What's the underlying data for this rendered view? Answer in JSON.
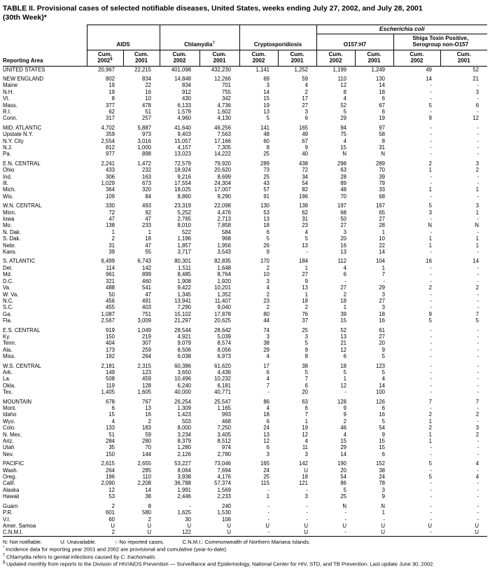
{
  "title": {
    "line1": "TABLE II. Provisional cases of selected notifiable diseases, United States, weeks ending July 27, 2002, and July 28, 2001",
    "line2": "(30th Week)*"
  },
  "header": {
    "reporting_area_label": "Reporting Area",
    "ecoli_group_label": "Escherichia coli",
    "groups": [
      {
        "lines": [
          "AIDS"
        ],
        "sup": ""
      },
      {
        "lines": [
          "Chlamydia"
        ],
        "sup": "†"
      },
      {
        "lines": [
          "Cryptosporidiosis"
        ],
        "sup": ""
      },
      {
        "lines": [
          "O157:H7"
        ],
        "sup": ""
      },
      {
        "lines": [
          "Shiga Toxin Positive,",
          "Serogroup non-O157"
        ],
        "sup": ""
      }
    ],
    "cum_columns": [
      {
        "l1": "Cum.",
        "l2": "2002",
        "sup": "§"
      },
      {
        "l1": "Cum.",
        "l2": "2001",
        "sup": ""
      },
      {
        "l1": "Cum.",
        "l2": "2002",
        "sup": ""
      },
      {
        "l1": "Cum.",
        "l2": "2001",
        "sup": ""
      },
      {
        "l1": "Cum.",
        "l2": "2002",
        "sup": ""
      },
      {
        "l1": "Cum.",
        "l2": "2001",
        "sup": ""
      },
      {
        "l1": "Cum.",
        "l2": "2002",
        "sup": ""
      },
      {
        "l1": "Cum.",
        "l2": "2001",
        "sup": ""
      },
      {
        "l1": "Cum.",
        "l2": "2002",
        "sup": ""
      },
      {
        "l1": "Cum.",
        "l2": "2001",
        "sup": ""
      }
    ]
  },
  "rows": [
    {
      "area": "UNITED STATES",
      "values": [
        "20,967",
        "22,215",
        "401,098",
        "432,230",
        "1,141",
        "1,252",
        "1,199",
        "1,249",
        "49",
        "52"
      ],
      "gap": false
    },
    {
      "area": "NEW ENGLAND",
      "values": [
        "802",
        "834",
        "14,848",
        "12,266",
        "69",
        "59",
        "110",
        "130",
        "14",
        "21"
      ],
      "gap": true
    },
    {
      "area": "Maine",
      "values": [
        "19",
        "22",
        "834",
        "701",
        "3",
        "4",
        "12",
        "14",
        "-",
        "-"
      ],
      "gap": false
    },
    {
      "area": "N.H.",
      "values": [
        "19",
        "16",
        "912",
        "755",
        "14",
        "2",
        "8",
        "18",
        "-",
        "3"
      ],
      "gap": false
    },
    {
      "area": "Vt.",
      "values": [
        "8",
        "10",
        "430",
        "342",
        "15",
        "17",
        "4",
        "6",
        "-",
        "-"
      ],
      "gap": false
    },
    {
      "area": "Mass.",
      "values": [
        "377",
        "478",
        "6,133",
        "4,736",
        "19",
        "27",
        "52",
        "67",
        "5",
        "6"
      ],
      "gap": false
    },
    {
      "area": "R.I.",
      "values": [
        "62",
        "51",
        "1,579",
        "1,602",
        "13",
        "3",
        "5",
        "6",
        "-",
        "-"
      ],
      "gap": false
    },
    {
      "area": "Conn.",
      "values": [
        "317",
        "257",
        "4,960",
        "4,130",
        "5",
        "6",
        "29",
        "19",
        "9",
        "12"
      ],
      "gap": false
    },
    {
      "area": "MID. ATLANTIC",
      "values": [
        "4,702",
        "5,887",
        "41,640",
        "46,256",
        "141",
        "165",
        "94",
        "97",
        "-",
        "-"
      ],
      "gap": true
    },
    {
      "area": "Upstate N.Y.",
      "values": [
        "359",
        "973",
        "9,403",
        "7,563",
        "48",
        "49",
        "75",
        "58",
        "-",
        "-"
      ],
      "gap": false
    },
    {
      "area": "N.Y. City",
      "values": [
        "2,554",
        "3,016",
        "15,057",
        "17,166",
        "60",
        "67",
        "4",
        "8",
        "-",
        "-"
      ],
      "gap": false
    },
    {
      "area": "N.J.",
      "values": [
        "812",
        "1,000",
        "4,157",
        "7,305",
        "8",
        "9",
        "15",
        "31",
        "-",
        "-"
      ],
      "gap": false
    },
    {
      "area": "Pa.",
      "values": [
        "977",
        "898",
        "13,023",
        "14,222",
        "25",
        "40",
        "N",
        "N",
        "-",
        "-"
      ],
      "gap": false
    },
    {
      "area": "E.N. CENTRAL",
      "values": [
        "2,241",
        "1,472",
        "72,579",
        "79,920",
        "289",
        "438",
        "298",
        "289",
        "2",
        "3"
      ],
      "gap": true
    },
    {
      "area": "Ohio",
      "values": [
        "433",
        "232",
        "18,924",
        "20,620",
        "73",
        "72",
        "63",
        "70",
        "1",
        "2"
      ],
      "gap": false
    },
    {
      "area": "Ind.",
      "values": [
        "306",
        "163",
        "9,216",
        "8,699",
        "25",
        "34",
        "28",
        "39",
        "-",
        "-"
      ],
      "gap": false
    },
    {
      "area": "Ill.",
      "values": [
        "1,029",
        "673",
        "17,554",
        "24,304",
        "43",
        "54",
        "89",
        "79",
        "-",
        "-"
      ],
      "gap": false
    },
    {
      "area": "Mich.",
      "values": [
        "364",
        "320",
        "18,025",
        "17,007",
        "57",
        "82",
        "48",
        "33",
        "1",
        "1"
      ],
      "gap": false
    },
    {
      "area": "Wis.",
      "values": [
        "109",
        "84",
        "8,860",
        "9,290",
        "91",
        "196",
        "70",
        "68",
        "-",
        "-"
      ],
      "gap": false
    },
    {
      "area": "W.N. CENTRAL",
      "values": [
        "330",
        "493",
        "23,319",
        "22,098",
        "130",
        "138",
        "197",
        "167",
        "5",
        "3"
      ],
      "gap": true
    },
    {
      "area": "Minn.",
      "values": [
        "72",
        "92",
        "5,252",
        "4,476",
        "53",
        "62",
        "68",
        "65",
        "3",
        "1"
      ],
      "gap": false
    },
    {
      "area": "Iowa",
      "values": [
        "47",
        "47",
        "2,765",
        "2,713",
        "13",
        "31",
        "50",
        "27",
        "-",
        "-"
      ],
      "gap": false
    },
    {
      "area": "Mo.",
      "values": [
        "138",
        "233",
        "8,010",
        "7,858",
        "18",
        "23",
        "27",
        "28",
        "N",
        "N"
      ],
      "gap": false
    },
    {
      "area": "N. Dak.",
      "values": [
        "1",
        "1",
        "522",
        "584",
        "6",
        "4",
        "3",
        "1",
        "-",
        "-"
      ],
      "gap": false
    },
    {
      "area": "S. Dak.",
      "values": [
        "2",
        "18",
        "1,196",
        "968",
        "5",
        "5",
        "20",
        "10",
        "1",
        "1"
      ],
      "gap": false
    },
    {
      "area": "Nebr.",
      "values": [
        "31",
        "47",
        "1,857",
        "1,956",
        "26",
        "13",
        "16",
        "22",
        "1",
        "1"
      ],
      "gap": false
    },
    {
      "area": "Kans.",
      "values": [
        "39",
        "55",
        "3,717",
        "3,543",
        "9",
        "-",
        "13",
        "14",
        "-",
        "-"
      ],
      "gap": false
    },
    {
      "area": "S. ATLANTIC",
      "values": [
        "6,499",
        "6,743",
        "80,301",
        "82,835",
        "170",
        "184",
        "112",
        "104",
        "16",
        "14"
      ],
      "gap": true
    },
    {
      "area": "Del.",
      "values": [
        "114",
        "142",
        "1,511",
        "1,648",
        "2",
        "1",
        "4",
        "1",
        "-",
        "-"
      ],
      "gap": false
    },
    {
      "area": "Md.",
      "values": [
        "961",
        "899",
        "8,485",
        "8,764",
        "10",
        "27",
        "6",
        "7",
        "-",
        "-"
      ],
      "gap": false
    },
    {
      "area": "D.C.",
      "values": [
        "321",
        "460",
        "1,908",
        "1,920",
        "3",
        "9",
        "-",
        "-",
        "-",
        "-"
      ],
      "gap": false
    },
    {
      "area": "Va.",
      "values": [
        "488",
        "541",
        "9,422",
        "10,201",
        "4",
        "13",
        "27",
        "29",
        "2",
        "2"
      ],
      "gap": false
    },
    {
      "area": "W. Va.",
      "values": [
        "50",
        "47",
        "1,345",
        "1,352",
        "2",
        "1",
        "2",
        "3",
        "-",
        "-"
      ],
      "gap": false
    },
    {
      "area": "N.C.",
      "values": [
        "456",
        "491",
        "13,941",
        "11,407",
        "23",
        "18",
        "18",
        "27",
        "-",
        "-"
      ],
      "gap": false
    },
    {
      "area": "S.C.",
      "values": [
        "455",
        "403",
        "7,290",
        "9,040",
        "2",
        "2",
        "1",
        "3",
        "-",
        "-"
      ],
      "gap": false
    },
    {
      "area": "Ga.",
      "values": [
        "1,087",
        "751",
        "15,102",
        "17,878",
        "80",
        "76",
        "39",
        "18",
        "9",
        "7"
      ],
      "gap": false
    },
    {
      "area": "Fla.",
      "values": [
        "2,567",
        "3,009",
        "21,297",
        "20,625",
        "44",
        "37",
        "15",
        "16",
        "5",
        "5"
      ],
      "gap": false
    },
    {
      "area": "E.S. CENTRAL",
      "values": [
        "919",
        "1,049",
        "28,544",
        "28,642",
        "74",
        "25",
        "52",
        "61",
        "-",
        "-"
      ],
      "gap": true
    },
    {
      "area": "Ky.",
      "values": [
        "150",
        "219",
        "4,921",
        "5,039",
        "3",
        "3",
        "13",
        "27",
        "-",
        "-"
      ],
      "gap": false
    },
    {
      "area": "Tenn.",
      "values": [
        "404",
        "307",
        "9,079",
        "8,574",
        "38",
        "5",
        "21",
        "20",
        "-",
        "-"
      ],
      "gap": false
    },
    {
      "area": "Ala.",
      "values": [
        "173",
        "259",
        "8,506",
        "8,056",
        "29",
        "9",
        "12",
        "9",
        "-",
        "-"
      ],
      "gap": false
    },
    {
      "area": "Miss.",
      "values": [
        "192",
        "264",
        "6,038",
        "6,973",
        "4",
        "8",
        "6",
        "5",
        "-",
        "-"
      ],
      "gap": false
    },
    {
      "area": "W.S. CENTRAL",
      "values": [
        "2,181",
        "2,315",
        "60,386",
        "61,620",
        "17",
        "38",
        "18",
        "123",
        "-",
        "-"
      ],
      "gap": true
    },
    {
      "area": "Ark.",
      "values": [
        "149",
        "123",
        "3,650",
        "4,436",
        "6",
        "5",
        "5",
        "5",
        "-",
        "-"
      ],
      "gap": false
    },
    {
      "area": "La.",
      "values": [
        "508",
        "459",
        "10,496",
        "10,232",
        "4",
        "7",
        "1",
        "4",
        "-",
        "-"
      ],
      "gap": false
    },
    {
      "area": "Okla.",
      "values": [
        "119",
        "128",
        "6,240",
        "6,181",
        "7",
        "6",
        "12",
        "14",
        "-",
        "-"
      ],
      "gap": false
    },
    {
      "area": "Tex.",
      "values": [
        "1,405",
        "1,605",
        "40,000",
        "40,771",
        "-",
        "20",
        "-",
        "100",
        "-",
        "-"
      ],
      "gap": false
    },
    {
      "area": "MOUNTAIN",
      "values": [
        "678",
        "767",
        "26,254",
        "25,547",
        "86",
        "63",
        "128",
        "126",
        "7",
        "7"
      ],
      "gap": true
    },
    {
      "area": "Mont.",
      "values": [
        "6",
        "13",
        "1,309",
        "1,165",
        "4",
        "6",
        "9",
        "6",
        "-",
        "-"
      ],
      "gap": false
    },
    {
      "area": "Idaho",
      "values": [
        "15",
        "16",
        "1,423",
        "993",
        "18",
        "7",
        "9",
        "16",
        "2",
        "2"
      ],
      "gap": false
    },
    {
      "area": "Wyo.",
      "values": [
        "4",
        "2",
        "503",
        "468",
        "6",
        "1",
        "2",
        "5",
        "1",
        "-"
      ],
      "gap": false
    },
    {
      "area": "Colo.",
      "values": [
        "133",
        "183",
        "8,000",
        "7,250",
        "24",
        "19",
        "46",
        "54",
        "2",
        "3"
      ],
      "gap": false
    },
    {
      "area": "N. Mex.",
      "values": [
        "51",
        "59",
        "3,234",
        "3,405",
        "13",
        "12",
        "4",
        "9",
        "1",
        "2"
      ],
      "gap": false
    },
    {
      "area": "Ariz.",
      "values": [
        "284",
        "280",
        "8,379",
        "8,512",
        "12",
        "4",
        "15",
        "15",
        "1",
        "-"
      ],
      "gap": false
    },
    {
      "area": "Utah",
      "values": [
        "35",
        "70",
        "1,280",
        "974",
        "6",
        "11",
        "29",
        "15",
        "-",
        "-"
      ],
      "gap": false
    },
    {
      "area": "Nev.",
      "values": [
        "150",
        "144",
        "2,126",
        "2,780",
        "3",
        "3",
        "14",
        "6",
        "-",
        "-"
      ],
      "gap": false
    },
    {
      "area": "PACIFIC",
      "values": [
        "2,615",
        "2,655",
        "53,227",
        "73,046",
        "165",
        "142",
        "190",
        "152",
        "5",
        "4"
      ],
      "gap": true
    },
    {
      "area": "Wash.",
      "values": [
        "264",
        "285",
        "8,064",
        "7,694",
        "24",
        "U",
        "20",
        "38",
        "-",
        "-"
      ],
      "gap": false
    },
    {
      "area": "Oreg.",
      "values": [
        "196",
        "110",
        "3,938",
        "4,176",
        "25",
        "18",
        "54",
        "24",
        "5",
        "4"
      ],
      "gap": false
    },
    {
      "area": "Calif.",
      "values": [
        "2,090",
        "2,208",
        "36,788",
        "57,374",
        "115",
        "121",
        "86",
        "78",
        "-",
        "-"
      ],
      "gap": false
    },
    {
      "area": "Alaska",
      "values": [
        "12",
        "14",
        "1,991",
        "1,569",
        "-",
        "-",
        "5",
        "3",
        "-",
        "-"
      ],
      "gap": false
    },
    {
      "area": "Hawaii",
      "values": [
        "53",
        "38",
        "2,446",
        "2,233",
        "1",
        "3",
        "25",
        "9",
        "-",
        "-"
      ],
      "gap": false
    },
    {
      "area": "Guam",
      "values": [
        "2",
        "8",
        "-",
        "240",
        "-",
        "-",
        "N",
        "N",
        "-",
        "-"
      ],
      "gap": true
    },
    {
      "area": "P.R.",
      "values": [
        "601",
        "580",
        "1,625",
        "1,530",
        "-",
        "-",
        "-",
        "1",
        "-",
        "-"
      ],
      "gap": false
    },
    {
      "area": "V.I.",
      "values": [
        "60",
        "2",
        "30",
        "106",
        "-",
        "-",
        "-",
        "-",
        "-",
        "-"
      ],
      "gap": false
    },
    {
      "area": "Amer. Samoa",
      "values": [
        "U",
        "U",
        "U",
        "U",
        "U",
        "U",
        "U",
        "U",
        "U",
        "U"
      ],
      "gap": false
    },
    {
      "area": "C.N.M.I.",
      "values": [
        "2",
        "U",
        "122",
        "U",
        "-",
        "U",
        "-",
        "U",
        "-",
        "U"
      ],
      "gap": false
    }
  ],
  "footnotes": {
    "legend": [
      "N: Not notifiable.",
      "U: Unavailable.",
      "-: No reported cases.",
      "C.N.M.I.: Commonwealth of Northern Mariana Islands."
    ],
    "notes": [
      {
        "marker": "*",
        "segments": [
          {
            "t": "Incidence data for reporting year 2001 and 2002 are provisional and cumulative (year-to-date)."
          }
        ]
      },
      {
        "marker": "†",
        "segments": [
          {
            "t": "Chlamydia refers to genital infections caused by "
          },
          {
            "t": "C. trachomatis",
            "i": true
          },
          {
            "t": "."
          }
        ]
      },
      {
        "marker": "§",
        "segments": [
          {
            "t": "Updated monthly from reports to the Division of HIV/AIDS Prevention — Surveillance and Epidemiology, National Center for HIV, STD, and TB Prevention. Last update June 30, 2002."
          }
        ]
      }
    ]
  }
}
